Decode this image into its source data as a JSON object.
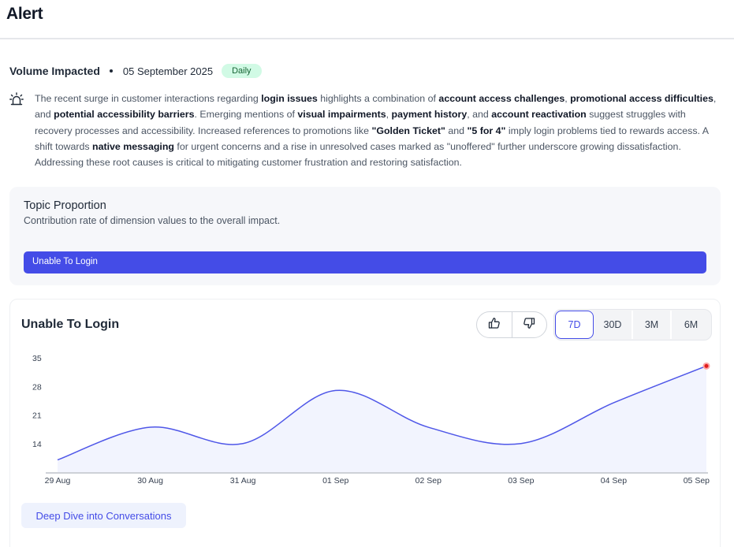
{
  "header": {
    "title": "Alert"
  },
  "meta": {
    "label": "Volume Impacted",
    "date": "05 September 2025",
    "badge": "Daily"
  },
  "summary": {
    "icon": "alarm-icon",
    "segments": [
      {
        "text": "The recent surge in customer interactions regarding ",
        "bold": false
      },
      {
        "text": "login issues",
        "bold": true
      },
      {
        "text": " highlights a combination of ",
        "bold": false
      },
      {
        "text": "account access challenges",
        "bold": true
      },
      {
        "text": ", ",
        "bold": false
      },
      {
        "text": "promotional access difficulties",
        "bold": true
      },
      {
        "text": ", and ",
        "bold": false
      },
      {
        "text": "potential accessibility barriers",
        "bold": true
      },
      {
        "text": ". Emerging mentions of ",
        "bold": false
      },
      {
        "text": "visual impairments",
        "bold": true
      },
      {
        "text": ", ",
        "bold": false
      },
      {
        "text": "payment history",
        "bold": true
      },
      {
        "text": ", and ",
        "bold": false
      },
      {
        "text": "account reactivation",
        "bold": true
      },
      {
        "text": " suggest struggles with recovery processes and accessibility. Increased references to promotions like ",
        "bold": false
      },
      {
        "text": "\"Golden Ticket\"",
        "bold": true
      },
      {
        "text": " and ",
        "bold": false
      },
      {
        "text": "\"5 for 4\"",
        "bold": true
      },
      {
        "text": " imply login problems tied to rewards access. A shift towards ",
        "bold": false
      },
      {
        "text": "native messaging",
        "bold": true
      },
      {
        "text": " for urgent concerns and a rise in unresolved cases marked as \"unoffered\" further underscore growing dissatisfaction. Addressing these root causes is critical to mitigating customer frustration and restoring satisfaction.",
        "bold": false
      }
    ]
  },
  "topic": {
    "title": "Topic Proportion",
    "subtitle": "Contribution rate of dimension values to the overall impact.",
    "bar": {
      "label": "Unable To Login",
      "share": 1.0,
      "color": "#444ce7"
    }
  },
  "chart_card": {
    "title": "Unable To Login",
    "thumbs_up_icon": "thumbs-up-icon",
    "thumbs_down_icon": "thumbs-down-icon",
    "ranges": [
      {
        "label": "7D",
        "active": true
      },
      {
        "label": "30D",
        "active": false
      },
      {
        "label": "3M",
        "active": false
      },
      {
        "label": "6M",
        "active": false
      }
    ],
    "deep_dive_label": "Deep Dive into Conversations"
  },
  "chart_data": {
    "type": "area",
    "title": "Unable To Login",
    "xlabel": "",
    "ylabel": "",
    "x": [
      "29 Aug",
      "30 Aug",
      "31 Aug",
      "01 Sep",
      "02 Sep",
      "03 Sep",
      "04 Sep",
      "05 Sep"
    ],
    "values": [
      10,
      18,
      14,
      27,
      18,
      14,
      24,
      33
    ],
    "yticks": [
      14,
      21,
      28,
      35
    ],
    "ylim": [
      7,
      35
    ],
    "grid": false,
    "line_color": "#4f57e8",
    "fill_color": "#f2f4fe",
    "highlight_color": "#e11d1d",
    "highlight_last_point": true
  }
}
